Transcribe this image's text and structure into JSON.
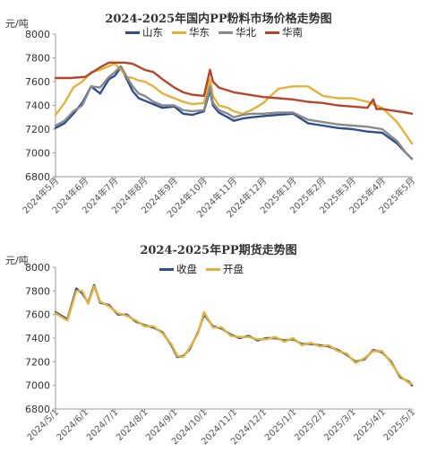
{
  "chart_data": [
    {
      "type": "line",
      "title": "2024-2025年国内PP粉料市场价格走势图",
      "ylabel": "元/吨",
      "ylim": [
        6800,
        8000
      ],
      "yticks": [
        6800,
        7000,
        7200,
        7400,
        7600,
        7800,
        8000
      ],
      "categories": [
        "2024年5月",
        "2024年6月",
        "2024年7月",
        "2024年8月",
        "2024年9月",
        "2024年10月",
        "2024年11月",
        "2024年12月",
        "2025年1月",
        "2025年2月",
        "2025年3月",
        "2025年4月",
        "2025年5月"
      ],
      "legend_position": "top",
      "grid": false,
      "series": [
        {
          "name": "山东",
          "color": "#2f4f8f",
          "x": [
            0,
            0.3,
            0.6,
            0.9,
            1.2,
            1.5,
            1.8,
            2.0,
            2.2,
            2.4,
            2.6,
            2.8,
            3.0,
            3.3,
            3.6,
            4.0,
            4.3,
            4.6,
            5.0,
            5.2,
            5.3,
            5.5,
            5.8,
            6.0,
            6.3,
            6.6,
            7.0,
            7.5,
            8.0,
            8.5,
            9.0,
            9.5,
            10.0,
            10.5,
            11.0,
            11.5,
            11.8,
            12.0
          ],
          "values": [
            7210,
            7250,
            7330,
            7420,
            7560,
            7500,
            7620,
            7650,
            7720,
            7620,
            7520,
            7460,
            7440,
            7410,
            7380,
            7390,
            7330,
            7320,
            7350,
            7530,
            7400,
            7340,
            7300,
            7270,
            7290,
            7300,
            7310,
            7320,
            7330,
            7250,
            7230,
            7210,
            7200,
            7180,
            7170,
            7080,
            7000,
            6950
          ]
        },
        {
          "name": "华东",
          "color": "#e3b23c",
          "x": [
            0,
            0.3,
            0.6,
            0.9,
            1.2,
            1.5,
            1.8,
            2.0,
            2.2,
            2.4,
            2.6,
            2.8,
            3.0,
            3.3,
            3.6,
            4.0,
            4.3,
            4.6,
            5.0,
            5.2,
            5.3,
            5.5,
            5.8,
            6.0,
            6.3,
            6.6,
            7.0,
            7.5,
            8.0,
            8.5,
            9.0,
            9.5,
            10.0,
            10.5,
            11.0,
            11.5,
            11.8,
            12.0
          ],
          "values": [
            7320,
            7420,
            7550,
            7600,
            7680,
            7700,
            7730,
            7750,
            7700,
            7640,
            7630,
            7610,
            7600,
            7560,
            7500,
            7460,
            7430,
            7410,
            7420,
            7620,
            7480,
            7400,
            7380,
            7350,
            7330,
            7360,
            7420,
            7540,
            7560,
            7560,
            7480,
            7460,
            7460,
            7430,
            7380,
            7260,
            7150,
            7080
          ]
        },
        {
          "name": "华北",
          "color": "#8a8a8a",
          "x": [
            0,
            0.3,
            0.6,
            0.9,
            1.2,
            1.5,
            1.8,
            2.0,
            2.2,
            2.4,
            2.6,
            2.8,
            3.0,
            3.3,
            3.6,
            4.0,
            4.3,
            4.6,
            5.0,
            5.2,
            5.3,
            5.5,
            5.8,
            6.0,
            6.3,
            6.6,
            7.0,
            7.5,
            8.0,
            8.5,
            9.0,
            9.5,
            10.0,
            10.5,
            11.0,
            11.5,
            11.8,
            12.0
          ],
          "values": [
            7230,
            7270,
            7350,
            7400,
            7560,
            7550,
            7640,
            7680,
            7730,
            7640,
            7560,
            7500,
            7480,
            7430,
            7400,
            7400,
            7360,
            7350,
            7360,
            7560,
            7420,
            7360,
            7330,
            7300,
            7320,
            7330,
            7330,
            7340,
            7340,
            7280,
            7260,
            7240,
            7230,
            7220,
            7200,
            7100,
            7000,
            6950
          ]
        },
        {
          "name": "华南",
          "color": "#b5462a",
          "x": [
            0,
            0.5,
            1.0,
            1.5,
            1.8,
            2.0,
            2.3,
            2.6,
            3.0,
            3.3,
            3.6,
            4.0,
            4.3,
            4.6,
            5.0,
            5.2,
            5.3,
            5.5,
            6.0,
            6.5,
            7.0,
            7.5,
            8.0,
            8.5,
            9.0,
            9.5,
            10.0,
            10.5,
            10.7,
            10.8,
            11.0,
            11.5,
            11.8,
            12.0
          ],
          "values": [
            7630,
            7630,
            7640,
            7720,
            7760,
            7760,
            7760,
            7750,
            7700,
            7680,
            7620,
            7550,
            7510,
            7490,
            7480,
            7700,
            7600,
            7550,
            7510,
            7490,
            7470,
            7460,
            7450,
            7430,
            7420,
            7400,
            7390,
            7380,
            7450,
            7370,
            7370,
            7350,
            7340,
            7330
          ]
        }
      ]
    },
    {
      "type": "line",
      "title": "2024-2025年PP期货走势图",
      "ylabel": "元/吨",
      "ylim": [
        6800,
        8000
      ],
      "yticks": [
        6800,
        7000,
        7200,
        7400,
        7600,
        7800,
        8000
      ],
      "categories": [
        "2024/5/1",
        "2024/6/1",
        "2024/7/1",
        "2024/8/1",
        "2024/9/1",
        "2024/10/1",
        "2024/11/1",
        "2024/12/1",
        "2025/1/1",
        "2025/2/1",
        "2025/3/1",
        "2025/4/1",
        "2025/5/1"
      ],
      "legend_position": "top",
      "grid": false,
      "series": [
        {
          "name": "收盘",
          "color": "#2f4f8f",
          "x": [
            0,
            0.4,
            0.7,
            0.9,
            1.1,
            1.3,
            1.5,
            1.8,
            2.1,
            2.4,
            2.7,
            3.0,
            3.3,
            3.6,
            3.9,
            4.1,
            4.3,
            4.5,
            4.8,
            5.0,
            5.3,
            5.6,
            5.9,
            6.2,
            6.5,
            6.8,
            7.1,
            7.4,
            7.7,
            8.0,
            8.3,
            8.6,
            8.9,
            9.2,
            9.5,
            9.8,
            10.1,
            10.4,
            10.7,
            11.0,
            11.3,
            11.6,
            11.9,
            12.0
          ],
          "values": [
            7620,
            7560,
            7820,
            7780,
            7700,
            7850,
            7700,
            7680,
            7600,
            7600,
            7540,
            7510,
            7490,
            7450,
            7340,
            7240,
            7250,
            7300,
            7450,
            7600,
            7500,
            7480,
            7430,
            7400,
            7420,
            7380,
            7400,
            7400,
            7380,
            7390,
            7350,
            7350,
            7340,
            7330,
            7300,
            7260,
            7200,
            7220,
            7300,
            7280,
            7200,
            7070,
            7030,
            7000
          ]
        },
        {
          "name": "开盘",
          "color": "#e3b23c",
          "x": [
            0,
            0.4,
            0.7,
            0.9,
            1.1,
            1.3,
            1.5,
            1.8,
            2.1,
            2.4,
            2.7,
            3.0,
            3.3,
            3.6,
            3.9,
            4.1,
            4.3,
            4.5,
            4.8,
            5.0,
            5.3,
            5.6,
            5.9,
            6.2,
            6.5,
            6.8,
            7.1,
            7.4,
            7.7,
            8.0,
            8.3,
            8.6,
            8.9,
            9.2,
            9.5,
            9.8,
            10.1,
            10.4,
            10.7,
            11.0,
            11.3,
            11.6,
            11.9,
            12.0
          ],
          "values": [
            7610,
            7550,
            7800,
            7800,
            7690,
            7840,
            7710,
            7670,
            7610,
            7590,
            7550,
            7500,
            7500,
            7440,
            7350,
            7250,
            7240,
            7310,
            7440,
            7620,
            7490,
            7490,
            7420,
            7410,
            7410,
            7390,
            7390,
            7410,
            7370,
            7400,
            7340,
            7360,
            7330,
            7340,
            7290,
            7270,
            7190,
            7230,
            7290,
            7290,
            7190,
            7080,
            7020,
            7010
          ]
        }
      ]
    }
  ]
}
